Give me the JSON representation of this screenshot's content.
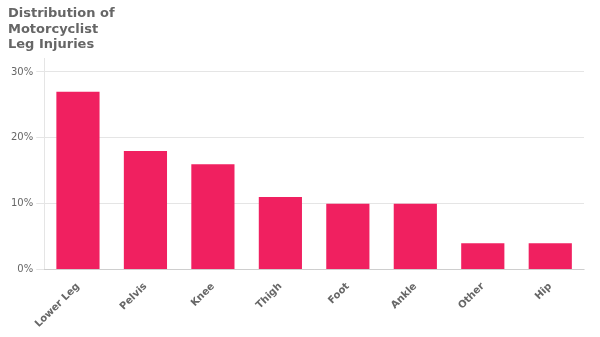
{
  "chart_data": {
    "type": "bar",
    "title": "Distribution of\nMotorcyclist\nLeg Injuries",
    "categories": [
      "Lower Leg",
      "Pelvis",
      "Knee",
      "Thigh",
      "Foot",
      "Ankle",
      "Other",
      "Hip"
    ],
    "values": [
      0.27,
      0.18,
      0.16,
      0.11,
      0.1,
      0.1,
      0.04,
      0.04
    ],
    "color": "#F02060",
    "ylim": [
      0,
      0.32
    ],
    "yticks": [
      {
        "value": 0.0,
        "label": "0%"
      },
      {
        "value": 0.1,
        "label": "10%"
      },
      {
        "value": 0.2,
        "label": "20%"
      },
      {
        "value": 0.3,
        "label": "30%"
      }
    ],
    "grid": true
  }
}
